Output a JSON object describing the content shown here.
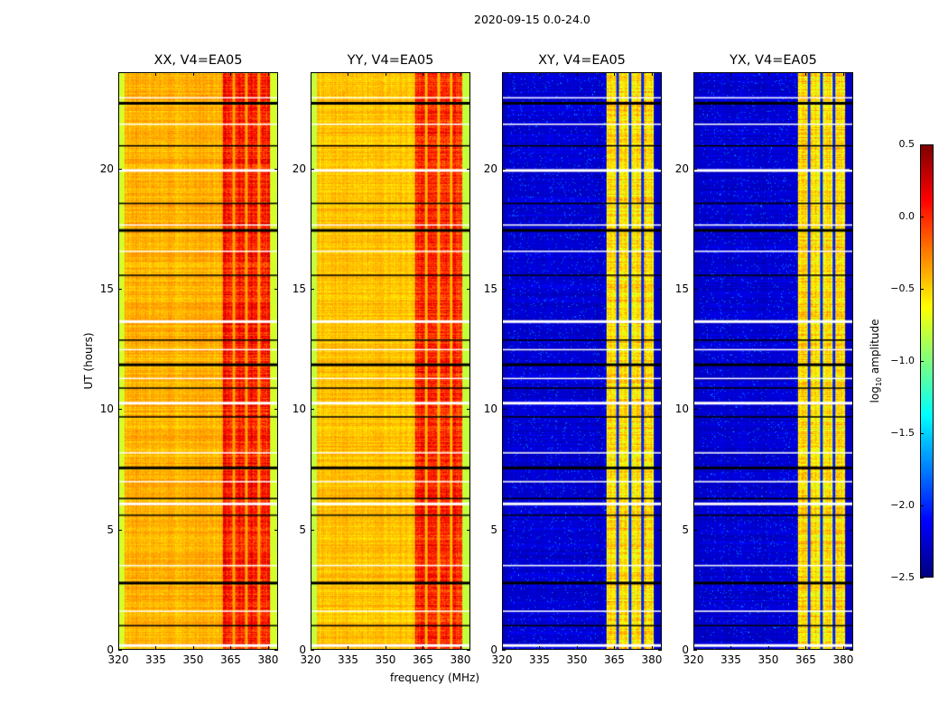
{
  "chart_data": {
    "type": "heatmap",
    "suptitle": "2020-09-15 0.0-24.0",
    "xlabel": "frequency (MHz)",
    "ylabel": "UT (hours)",
    "xlim": [
      320,
      384
    ],
    "ylim": [
      0,
      24
    ],
    "xticks": [
      320,
      335,
      350,
      365,
      380
    ],
    "yticks": [
      0,
      5,
      10,
      15,
      20
    ],
    "colormap": "jet",
    "colorbar": {
      "label": "log10 amplitude",
      "label_main": "log",
      "label_sub": "10",
      "label_tail": " amplitude",
      "range": [
        -2.5,
        0.5
      ],
      "ticks": [
        "0.5",
        "0.0",
        "−0.5",
        "−1.0",
        "−1.5",
        "−2.0",
        "−2.5"
      ],
      "tick_values": [
        0.5,
        0,
        -0.5,
        -1,
        -1.5,
        -2,
        -2.5
      ]
    },
    "band_MHz": [
      362,
      381
    ],
    "band_gaps_MHz": [
      366.5,
      371.5,
      376.5
    ],
    "flagged_hours": [
      0.2,
      1.0,
      1.6,
      2.8,
      3.5,
      5.6,
      6.1,
      6.3,
      7.0,
      7.6,
      8.2,
      9.7,
      10.3,
      10.9,
      11.3,
      11.9,
      12.5,
      12.9,
      13.7,
      15.6,
      16.6,
      17.5,
      17.7,
      18.6,
      20.0,
      21.0,
      21.9,
      22.8,
      23.0
    ],
    "panels": [
      {
        "title": "XX, V4=EA05",
        "baseline": -0.4,
        "edge": -0.75,
        "band": 0.05,
        "gap": -0.35
      },
      {
        "title": "YY, V4=EA05",
        "baseline": -0.45,
        "edge": -0.8,
        "band": 0.0,
        "gap": -0.4
      },
      {
        "title": "XY, V4=EA05",
        "baseline": -2.25,
        "edge": -2.3,
        "band": -0.55,
        "gap": -2.0
      },
      {
        "title": "YX, V4=EA05",
        "baseline": -2.25,
        "edge": -2.3,
        "band": -0.55,
        "gap": -2.0
      }
    ]
  }
}
